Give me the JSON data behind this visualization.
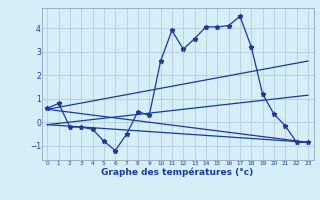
{
  "xlabel": "Graphe des températures (°c)",
  "background_color": "#d6eef8",
  "grid_color": "#b0c8d8",
  "line_color": "#1a3a9a",
  "xlim": [
    -0.5,
    23.5
  ],
  "ylim": [
    -1.6,
    4.85
  ],
  "xticks": [
    0,
    1,
    2,
    3,
    4,
    5,
    6,
    7,
    8,
    9,
    10,
    11,
    12,
    13,
    14,
    15,
    16,
    17,
    18,
    19,
    20,
    21,
    22,
    23
  ],
  "yticks": [
    -1,
    0,
    1,
    2,
    3,
    4
  ],
  "temp_x": [
    0,
    1,
    2,
    3,
    4,
    5,
    6,
    7,
    8,
    9,
    10,
    11,
    12,
    13,
    14,
    15,
    16,
    17,
    18,
    19,
    20,
    21,
    22,
    23
  ],
  "temp_y": [
    0.6,
    0.8,
    -0.2,
    -0.2,
    -0.3,
    -0.8,
    -1.2,
    -0.5,
    0.45,
    0.3,
    2.6,
    3.9,
    3.1,
    3.55,
    4.05,
    4.05,
    4.1,
    4.5,
    3.2,
    1.2,
    0.35,
    -0.15,
    -0.85,
    -0.85
  ],
  "line1_x": [
    0,
    23
  ],
  "line1_y": [
    0.55,
    2.6
  ],
  "line2_x": [
    0,
    23
  ],
  "line2_y": [
    -0.1,
    1.15
  ],
  "line3_x": [
    0,
    23
  ],
  "line3_y": [
    -0.1,
    -0.85
  ],
  "line4_x": [
    0,
    23
  ],
  "line4_y": [
    0.55,
    -0.85
  ]
}
